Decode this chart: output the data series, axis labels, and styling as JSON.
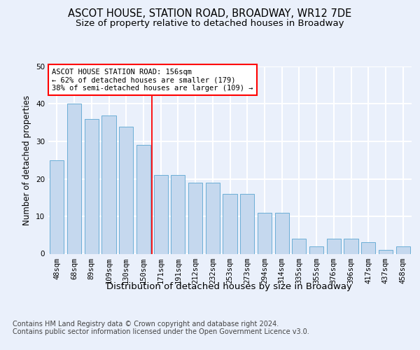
{
  "title1": "ASCOT HOUSE, STATION ROAD, BROADWAY, WR12 7DE",
  "title2": "Size of property relative to detached houses in Broadway",
  "xlabel": "Distribution of detached houses by size in Broadway",
  "ylabel": "Number of detached properties",
  "categories": [
    "48sqm",
    "68sqm",
    "89sqm",
    "109sqm",
    "130sqm",
    "150sqm",
    "171sqm",
    "191sqm",
    "212sqm",
    "232sqm",
    "253sqm",
    "273sqm",
    "294sqm",
    "314sqm",
    "335sqm",
    "355sqm",
    "376sqm",
    "396sqm",
    "417sqm",
    "437sqm",
    "458sqm"
  ],
  "bar_heights": [
    25,
    40,
    36,
    37,
    34,
    29,
    21,
    21,
    19,
    19,
    16,
    16,
    11,
    11,
    4,
    2,
    4,
    4,
    3,
    1,
    2
  ],
  "bar_color": "#c5d8ee",
  "bar_edgecolor": "#6baed6",
  "vline_index": 5.5,
  "vline_color": "red",
  "annotation_text": "ASCOT HOUSE STATION ROAD: 156sqm\n← 62% of detached houses are smaller (179)\n38% of semi-detached houses are larger (109) →",
  "footer": "Contains HM Land Registry data © Crown copyright and database right 2024.\nContains public sector information licensed under the Open Government Licence v3.0.",
  "ylim": [
    0,
    50
  ],
  "background_color": "#eaf0fb",
  "grid_color": "#ffffff",
  "title1_fontsize": 10.5,
  "title2_fontsize": 9.5,
  "xlabel_fontsize": 9.5,
  "ylabel_fontsize": 8.5,
  "tick_fontsize": 7.5,
  "ann_fontsize": 7.5,
  "footer_fontsize": 7.0
}
